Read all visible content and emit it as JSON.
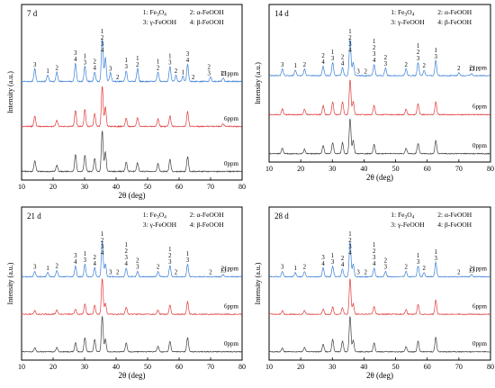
{
  "chart_data": [
    {
      "type": "line",
      "panel_title": "7 d",
      "xlabel": "2θ (deg)",
      "ylabel": "Intensity (a.u.)",
      "xlim": [
        10,
        80
      ],
      "xticks": [
        10,
        20,
        30,
        40,
        50,
        60,
        70,
        80
      ],
      "grid": false,
      "legend": {
        "placement": "top-right",
        "entries": [
          {
            "marker": "1",
            "name": "Fe3O4"
          },
          {
            "marker": "2",
            "name": "α-FeOOH"
          },
          {
            "marker": "3",
            "name": "γ-FeOOH"
          },
          {
            "marker": "4",
            "name": "β-FeOOH"
          }
        ]
      },
      "series": [
        {
          "name": "21ppm",
          "color": "#3a7fd5",
          "peaks": [
            [
              14.2,
              0.3
            ],
            [
              18.3,
              0.15
            ],
            [
              21.2,
              0.22
            ],
            [
              27.1,
              0.42
            ],
            [
              30.1,
              0.35
            ],
            [
              33.2,
              0.22
            ],
            [
              35.6,
              1.0
            ],
            [
              36.6,
              0.55
            ],
            [
              38.2,
              0.2
            ],
            [
              43.2,
              0.25
            ],
            [
              46.8,
              0.3
            ],
            [
              53.3,
              0.22
            ],
            [
              57.1,
              0.35
            ],
            [
              59.0,
              0.15
            ],
            [
              61.2,
              0.12
            ],
            [
              62.7,
              0.4
            ],
            [
              70.0,
              0.1
            ],
            [
              74.0,
              0.08
            ]
          ]
        },
        {
          "name": "6ppm",
          "color": "#e03a3a",
          "peaks": [
            [
              14.2,
              0.25
            ],
            [
              21.2,
              0.15
            ],
            [
              27.1,
              0.38
            ],
            [
              30.1,
              0.4
            ],
            [
              33.2,
              0.3
            ],
            [
              35.6,
              0.95
            ],
            [
              36.6,
              0.45
            ],
            [
              43.2,
              0.2
            ],
            [
              46.8,
              0.2
            ],
            [
              53.3,
              0.18
            ],
            [
              57.1,
              0.25
            ],
            [
              62.7,
              0.35
            ],
            [
              74.0,
              0.06
            ]
          ]
        },
        {
          "name": "0ppm",
          "color": "#404040",
          "peaks": [
            [
              14.2,
              0.25
            ],
            [
              21.2,
              0.15
            ],
            [
              27.1,
              0.4
            ],
            [
              30.1,
              0.38
            ],
            [
              33.2,
              0.3
            ],
            [
              35.6,
              0.95
            ],
            [
              36.6,
              0.45
            ],
            [
              43.2,
              0.22
            ],
            [
              46.8,
              0.2
            ],
            [
              53.3,
              0.18
            ],
            [
              57.1,
              0.28
            ],
            [
              62.7,
              0.35
            ]
          ]
        }
      ],
      "annotations": [
        {
          "x": 14.2,
          "label": "3"
        },
        {
          "x": 18.3,
          "label": "1"
        },
        {
          "x": 21.2,
          "label": "2"
        },
        {
          "x": 27.1,
          "label": "3\n4"
        },
        {
          "x": 30.1,
          "label": "1\n3"
        },
        {
          "x": 33.2,
          "label": "2\n4"
        },
        {
          "x": 35.6,
          "label": "1\n2\n3\n4"
        },
        {
          "x": 38.2,
          "label": "3"
        },
        {
          "x": 40.5,
          "label": "2"
        },
        {
          "x": 43.2,
          "label": "1\n3"
        },
        {
          "x": 46.8,
          "label": "1\n2"
        },
        {
          "x": 53.3,
          "label": "1\n2"
        },
        {
          "x": 57.1,
          "label": "1\n3"
        },
        {
          "x": 59.0,
          "label": "2"
        },
        {
          "x": 61.2,
          "label": "1"
        },
        {
          "x": 62.7,
          "label": "3\n4"
        },
        {
          "x": 64.5,
          "label": "2"
        },
        {
          "x": 69.5,
          "label": "2\n3"
        },
        {
          "x": 74.0,
          "label": "13"
        }
      ]
    },
    {
      "type": "line",
      "panel_title": "14 d",
      "xlabel": "2θ (deg)",
      "ylabel": "Intensity (a.u.)",
      "xlim": [
        10,
        80
      ],
      "xticks": [
        10,
        20,
        30,
        40,
        50,
        60,
        70,
        80
      ],
      "grid": false,
      "legend": {
        "placement": "top-right",
        "entries": [
          {
            "marker": "1",
            "name": "Fe3O4"
          },
          {
            "marker": "2",
            "name": "α-FeOOH"
          },
          {
            "marker": "3",
            "name": "γ-FeOOH"
          },
          {
            "marker": "4",
            "name": "β-FeOOH"
          }
        ]
      },
      "series": [
        {
          "name": "21ppm",
          "color": "#3a7fd5",
          "peaks": [
            [
              14.2,
              0.18
            ],
            [
              18.3,
              0.15
            ],
            [
              21.2,
              0.18
            ],
            [
              27.1,
              0.25
            ],
            [
              30.1,
              0.35
            ],
            [
              33.2,
              0.22
            ],
            [
              35.6,
              1.0
            ],
            [
              36.6,
              0.35
            ],
            [
              43.2,
              0.3
            ],
            [
              46.8,
              0.2
            ],
            [
              53.3,
              0.18
            ],
            [
              57.1,
              0.35
            ],
            [
              59.0,
              0.15
            ],
            [
              62.7,
              0.4
            ],
            [
              70.0,
              0.08
            ],
            [
              74.0,
              0.06
            ]
          ]
        },
        {
          "name": "6ppm",
          "color": "#e03a3a",
          "peaks": [
            [
              14.2,
              0.15
            ],
            [
              21.2,
              0.15
            ],
            [
              27.1,
              0.25
            ],
            [
              30.1,
              0.35
            ],
            [
              33.2,
              0.35
            ],
            [
              35.6,
              0.95
            ],
            [
              36.6,
              0.35
            ],
            [
              43.2,
              0.25
            ],
            [
              53.3,
              0.15
            ],
            [
              57.1,
              0.3
            ],
            [
              62.7,
              0.35
            ]
          ]
        },
        {
          "name": "0ppm",
          "color": "#404040",
          "peaks": [
            [
              14.2,
              0.15
            ],
            [
              21.2,
              0.12
            ],
            [
              27.1,
              0.22
            ],
            [
              30.1,
              0.3
            ],
            [
              33.2,
              0.3
            ],
            [
              35.6,
              0.95
            ],
            [
              36.6,
              0.35
            ],
            [
              43.2,
              0.25
            ],
            [
              53.3,
              0.15
            ],
            [
              57.1,
              0.28
            ],
            [
              62.7,
              0.35
            ]
          ]
        }
      ],
      "annotations": [
        {
          "x": 14.2,
          "label": "3"
        },
        {
          "x": 18.3,
          "label": "1"
        },
        {
          "x": 21.2,
          "label": "2"
        },
        {
          "x": 27.1,
          "label": "2\n4"
        },
        {
          "x": 30.1,
          "label": "1\n3"
        },
        {
          "x": 33.2,
          "label": "2\n4"
        },
        {
          "x": 35.6,
          "label": "1\n2\n3\n4"
        },
        {
          "x": 38.2,
          "label": "3"
        },
        {
          "x": 40.5,
          "label": "2"
        },
        {
          "x": 43.2,
          "label": "1\n2\n3\n4"
        },
        {
          "x": 46.8,
          "label": "2\n3"
        },
        {
          "x": 53.3,
          "label": "2"
        },
        {
          "x": 57.1,
          "label": "1\n2\n3"
        },
        {
          "x": 59.0,
          "label": "2"
        },
        {
          "x": 62.7,
          "label": "1\n3"
        },
        {
          "x": 70.0,
          "label": "2"
        },
        {
          "x": 74.0,
          "label": "13"
        }
      ]
    },
    {
      "type": "line",
      "panel_title": "21 d",
      "xlabel": "2θ (deg)",
      "ylabel": "Intensity (a.u.)",
      "xlim": [
        10,
        80
      ],
      "xticks": [
        10,
        20,
        30,
        40,
        50,
        60,
        70,
        80
      ],
      "grid": false,
      "legend": {
        "placement": "top-right",
        "entries": [
          {
            "marker": "1",
            "name": "Fe3O4"
          },
          {
            "marker": "2",
            "name": "α-FeOOH"
          },
          {
            "marker": "3",
            "name": "γ-FeOOH"
          },
          {
            "marker": "4",
            "name": "β-FeOOH"
          }
        ]
      },
      "series": [
        {
          "name": "21ppm",
          "color": "#3a7fd5",
          "peaks": [
            [
              14.2,
              0.15
            ],
            [
              18.3,
              0.12
            ],
            [
              21.2,
              0.18
            ],
            [
              27.1,
              0.3
            ],
            [
              30.1,
              0.35
            ],
            [
              33.2,
              0.25
            ],
            [
              35.6,
              1.0
            ],
            [
              36.6,
              0.35
            ],
            [
              43.2,
              0.25
            ],
            [
              46.8,
              0.15
            ],
            [
              53.3,
              0.15
            ],
            [
              57.1,
              0.3
            ],
            [
              62.7,
              0.35
            ],
            [
              74.0,
              0.06
            ]
          ]
        },
        {
          "name": "6ppm",
          "color": "#e03a3a",
          "peaks": [
            [
              14.2,
              0.1
            ],
            [
              21.2,
              0.12
            ],
            [
              27.1,
              0.15
            ],
            [
              30.1,
              0.3
            ],
            [
              33.2,
              0.25
            ],
            [
              35.6,
              1.0
            ],
            [
              36.6,
              0.3
            ],
            [
              43.2,
              0.2
            ],
            [
              53.3,
              0.12
            ],
            [
              57.1,
              0.25
            ],
            [
              62.7,
              0.35
            ]
          ]
        },
        {
          "name": "0ppm",
          "color": "#404040",
          "peaks": [
            [
              14.2,
              0.12
            ],
            [
              21.2,
              0.12
            ],
            [
              27.1,
              0.25
            ],
            [
              30.1,
              0.4
            ],
            [
              33.2,
              0.35
            ],
            [
              35.6,
              1.0
            ],
            [
              36.6,
              0.35
            ],
            [
              43.2,
              0.25
            ],
            [
              53.3,
              0.15
            ],
            [
              57.1,
              0.3
            ],
            [
              62.7,
              0.4
            ]
          ]
        }
      ],
      "annotations": [
        {
          "x": 14.2,
          "label": "3"
        },
        {
          "x": 18.3,
          "label": "1"
        },
        {
          "x": 21.2,
          "label": "2"
        },
        {
          "x": 27.1,
          "label": "3\n4"
        },
        {
          "x": 30.1,
          "label": "1\n3"
        },
        {
          "x": 33.2,
          "label": "2\n4"
        },
        {
          "x": 35.6,
          "label": "1\n2\n3\n4"
        },
        {
          "x": 38.2,
          "label": "3"
        },
        {
          "x": 40.5,
          "label": "2"
        },
        {
          "x": 43.2,
          "label": "1\n2\n3\n4"
        },
        {
          "x": 46.8,
          "label": "2\n3"
        },
        {
          "x": 53.3,
          "label": "2"
        },
        {
          "x": 57.1,
          "label": "1\n2\n3"
        },
        {
          "x": 59.0,
          "label": "2"
        },
        {
          "x": 62.7,
          "label": "1\n3"
        },
        {
          "x": 70.0,
          "label": "2"
        },
        {
          "x": 74.0,
          "label": "13"
        }
      ]
    },
    {
      "type": "line",
      "panel_title": "28 d",
      "xlabel": "2θ (deg)",
      "ylabel": "Intensity (a.u.)",
      "xlim": [
        10,
        80
      ],
      "xticks": [
        10,
        20,
        30,
        40,
        50,
        60,
        70,
        80
      ],
      "grid": false,
      "legend": {
        "placement": "top-right",
        "entries": [
          {
            "marker": "1",
            "name": "Fe3O4"
          },
          {
            "marker": "2",
            "name": "α-FeOOH"
          },
          {
            "marker": "3",
            "name": "γ-FeOOH"
          },
          {
            "marker": "4",
            "name": "β-FeOOH"
          }
        ]
      },
      "series": [
        {
          "name": "21ppm",
          "color": "#3a7fd5",
          "peaks": [
            [
              14.2,
              0.15
            ],
            [
              18.3,
              0.12
            ],
            [
              21.2,
              0.15
            ],
            [
              27.1,
              0.25
            ],
            [
              30.1,
              0.3
            ],
            [
              33.2,
              0.22
            ],
            [
              35.6,
              1.0
            ],
            [
              36.6,
              0.35
            ],
            [
              43.2,
              0.25
            ],
            [
              46.8,
              0.15
            ],
            [
              53.3,
              0.15
            ],
            [
              57.1,
              0.3
            ],
            [
              59.0,
              0.12
            ],
            [
              62.7,
              0.4
            ],
            [
              74.0,
              0.06
            ]
          ]
        },
        {
          "name": "6ppm",
          "color": "#e03a3a",
          "peaks": [
            [
              14.2,
              0.1
            ],
            [
              21.2,
              0.1
            ],
            [
              27.1,
              0.15
            ],
            [
              30.1,
              0.2
            ],
            [
              33.2,
              0.18
            ],
            [
              35.6,
              1.0
            ],
            [
              36.6,
              0.3
            ],
            [
              43.2,
              0.22
            ],
            [
              53.3,
              0.12
            ],
            [
              57.1,
              0.28
            ],
            [
              62.7,
              0.4
            ]
          ]
        },
        {
          "name": "0ppm",
          "color": "#404040",
          "peaks": [
            [
              14.2,
              0.1
            ],
            [
              21.2,
              0.12
            ],
            [
              27.1,
              0.22
            ],
            [
              30.1,
              0.35
            ],
            [
              33.2,
              0.3
            ],
            [
              35.6,
              1.0
            ],
            [
              36.6,
              0.32
            ],
            [
              43.2,
              0.25
            ],
            [
              53.3,
              0.15
            ],
            [
              57.1,
              0.3
            ],
            [
              62.7,
              0.4
            ]
          ]
        }
      ],
      "annotations": [
        {
          "x": 14.2,
          "label": "3"
        },
        {
          "x": 18.3,
          "label": "1"
        },
        {
          "x": 21.2,
          "label": "2"
        },
        {
          "x": 27.1,
          "label": "3\n4"
        },
        {
          "x": 30.1,
          "label": "1\n3"
        },
        {
          "x": 33.2,
          "label": "2\n4"
        },
        {
          "x": 35.6,
          "label": "1\n2\n3\n4"
        },
        {
          "x": 38.2,
          "label": "3"
        },
        {
          "x": 40.5,
          "label": "2"
        },
        {
          "x": 43.2,
          "label": "1\n2\n3\n4"
        },
        {
          "x": 46.8,
          "label": "2\n3"
        },
        {
          "x": 53.3,
          "label": "2"
        },
        {
          "x": 57.1,
          "label": "1\n3"
        },
        {
          "x": 59.0,
          "label": "2"
        },
        {
          "x": 62.7,
          "label": "1\n3"
        },
        {
          "x": 70.0,
          "label": "2"
        },
        {
          "x": 74.0,
          "label": "13"
        }
      ]
    }
  ]
}
